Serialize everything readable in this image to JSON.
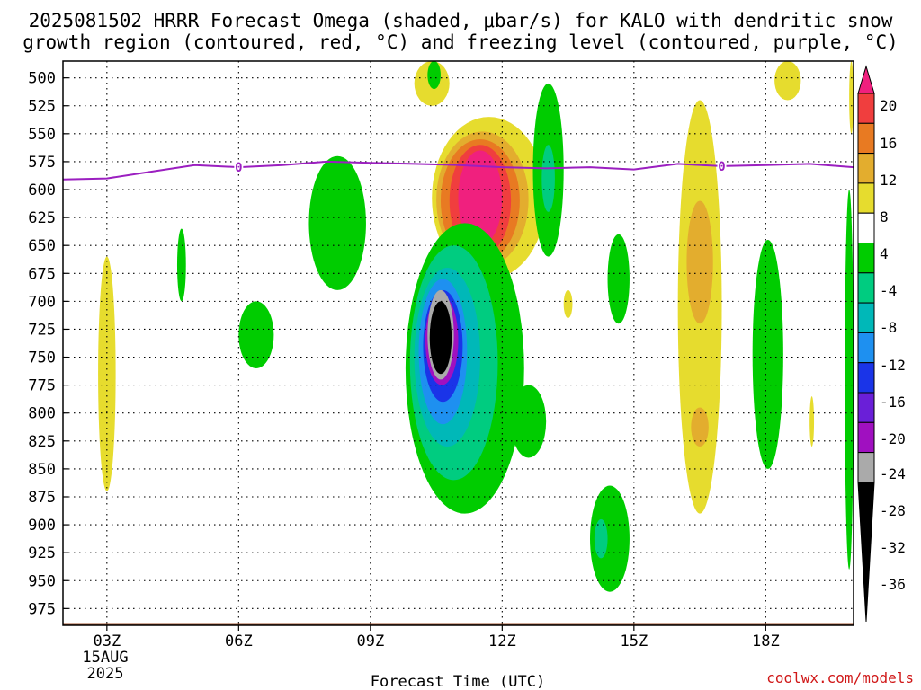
{
  "title": {
    "line1": "2025081502 HRRR Forecast Omega (shaded, μbar/s) for KALO with dendritic snow",
    "line2": "growth region (contoured, red, °C) and freezing level (contoured, purple, °C)"
  },
  "credit": "coolwx.com/models",
  "chart_data": {
    "type": "heatmap",
    "title": "2025081502 HRRR Forecast Omega (shaded, μbar/s) for KALO with dendritic snow growth region (contoured, red, °C) and freezing level (contoured, purple, °C)",
    "xlabel": "Forecast Time (UTC)",
    "ylabel": "",
    "x_ticks": [
      "03Z",
      "06Z",
      "09Z",
      "12Z",
      "15Z",
      "18Z"
    ],
    "x_date_label": [
      "15AUG",
      "2025"
    ],
    "x_range_hours": [
      2.0,
      20.0
    ],
    "y_ticks": [
      500,
      525,
      550,
      575,
      600,
      625,
      650,
      675,
      700,
      725,
      750,
      775,
      800,
      825,
      850,
      875,
      900,
      925,
      950,
      975
    ],
    "y_range_mb": [
      485,
      990
    ],
    "grid": "dotted",
    "colorbar": {
      "labels": [
        "20",
        "16",
        "12",
        "8",
        "4",
        "-4",
        "-8",
        "-12",
        "-16",
        "-20",
        "-24",
        "-28",
        "-32",
        "-36"
      ],
      "colors": [
        "#f0207e",
        "#f03e3e",
        "#e87a22",
        "#e3ad2e",
        "#e6dc2e",
        "#ffffff",
        "#00cc00",
        "#00cc80",
        "#00b8b8",
        "#1e90f0",
        "#1a34e8",
        "#6a1fd8",
        "#a010c0",
        "#aaaaaa",
        "#000000"
      ]
    },
    "freezing_level": {
      "label": "0",
      "color": "#9b1fc0",
      "hours": [
        2.0,
        3.0,
        4.0,
        5.0,
        6.0,
        7.0,
        8.0,
        9.0,
        10.0,
        11.0,
        12.0,
        13.0,
        14.0,
        15.0,
        16.0,
        17.0,
        18.0,
        19.0,
        20.0
      ],
      "mb": [
        591,
        590,
        584,
        578,
        580,
        578,
        575,
        576,
        577,
        578,
        580,
        581,
        580,
        582,
        577,
        579,
        578,
        577,
        580
      ]
    },
    "omega_regions": [
      {
        "h": [
          10.4,
          13.0
        ],
        "p": [
          535,
          680
        ],
        "v": 4
      },
      {
        "h": [
          10.5,
          12.6
        ],
        "p": [
          548,
          670
        ],
        "v": 8
      },
      {
        "h": [
          10.6,
          12.4
        ],
        "p": [
          555,
          665
        ],
        "v": 12
      },
      {
        "h": [
          10.8,
          12.2
        ],
        "p": [
          560,
          660
        ],
        "v": 16
      },
      {
        "h": [
          11.0,
          12.0
        ],
        "p": [
          565,
          650
        ],
        "v": 20
      },
      {
        "h": [
          10.0,
          10.8
        ],
        "p": [
          485,
          525
        ],
        "v": 4
      },
      {
        "h": [
          10.3,
          10.6
        ],
        "p": [
          485,
          510
        ],
        "v": -8
      },
      {
        "h": [
          2.8,
          3.2
        ],
        "p": [
          660,
          870
        ],
        "v": 4
      },
      {
        "h": [
          16.0,
          17.0
        ],
        "p": [
          520,
          890
        ],
        "v": 4
      },
      {
        "h": [
          16.2,
          16.8
        ],
        "p": [
          610,
          720
        ],
        "v": 8
      },
      {
        "h": [
          16.3,
          16.7
        ],
        "p": [
          795,
          830
        ],
        "v": 8
      },
      {
        "h": [
          18.2,
          18.8
        ],
        "p": [
          485,
          520
        ],
        "v": 4
      },
      {
        "h": [
          19.0,
          19.1
        ],
        "p": [
          785,
          830
        ],
        "v": 4
      },
      {
        "h": [
          19.9,
          20.0
        ],
        "p": [
          485,
          550
        ],
        "v": 4
      },
      {
        "h": [
          13.4,
          13.6
        ],
        "p": [
          690,
          715
        ],
        "v": 4
      },
      {
        "h": [
          7.6,
          8.9
        ],
        "p": [
          570,
          690
        ],
        "v": -4
      },
      {
        "h": [
          4.6,
          4.8
        ],
        "p": [
          635,
          700
        ],
        "v": -4
      },
      {
        "h": [
          6.0,
          6.8
        ],
        "p": [
          700,
          760
        ],
        "v": -4
      },
      {
        "h": [
          12.7,
          13.4
        ],
        "p": [
          505,
          660
        ],
        "v": -4
      },
      {
        "h": [
          12.9,
          13.2
        ],
        "p": [
          560,
          620
        ],
        "v": -12
      },
      {
        "h": [
          9.8,
          12.5
        ],
        "p": [
          630,
          890
        ],
        "v": -4
      },
      {
        "h": [
          9.9,
          11.9
        ],
        "p": [
          650,
          860
        ],
        "v": -12
      },
      {
        "h": [
          10.0,
          11.5
        ],
        "p": [
          670,
          830
        ],
        "v": -16
      },
      {
        "h": [
          10.1,
          11.2
        ],
        "p": [
          680,
          810
        ],
        "v": -20
      },
      {
        "h": [
          10.2,
          11.1
        ],
        "p": [
          690,
          790
        ],
        "v": -24
      },
      {
        "h": [
          10.25,
          11.0
        ],
        "p": [
          695,
          775
        ],
        "v": -28
      },
      {
        "h": [
          10.3,
          10.9
        ],
        "p": [
          690,
          770
        ],
        "v": -32
      },
      {
        "h": [
          10.35,
          10.85
        ],
        "p": [
          700,
          765
        ],
        "v": -36
      },
      {
        "h": [
          12.2,
          13.0
        ],
        "p": [
          775,
          840
        ],
        "v": -4
      },
      {
        "h": [
          14.4,
          14.9
        ],
        "p": [
          640,
          720
        ],
        "v": -4
      },
      {
        "h": [
          14.0,
          14.9
        ],
        "p": [
          865,
          960
        ],
        "v": -4
      },
      {
        "h": [
          14.1,
          14.4
        ],
        "p": [
          895,
          930
        ],
        "v": -12
      },
      {
        "h": [
          17.7,
          18.4
        ],
        "p": [
          645,
          850
        ],
        "v": -4
      },
      {
        "h": [
          19.8,
          20.0
        ],
        "p": [
          600,
          940
        ],
        "v": -4
      }
    ],
    "terrain": {
      "color": "#a0522d",
      "top_mb": 988
    }
  }
}
